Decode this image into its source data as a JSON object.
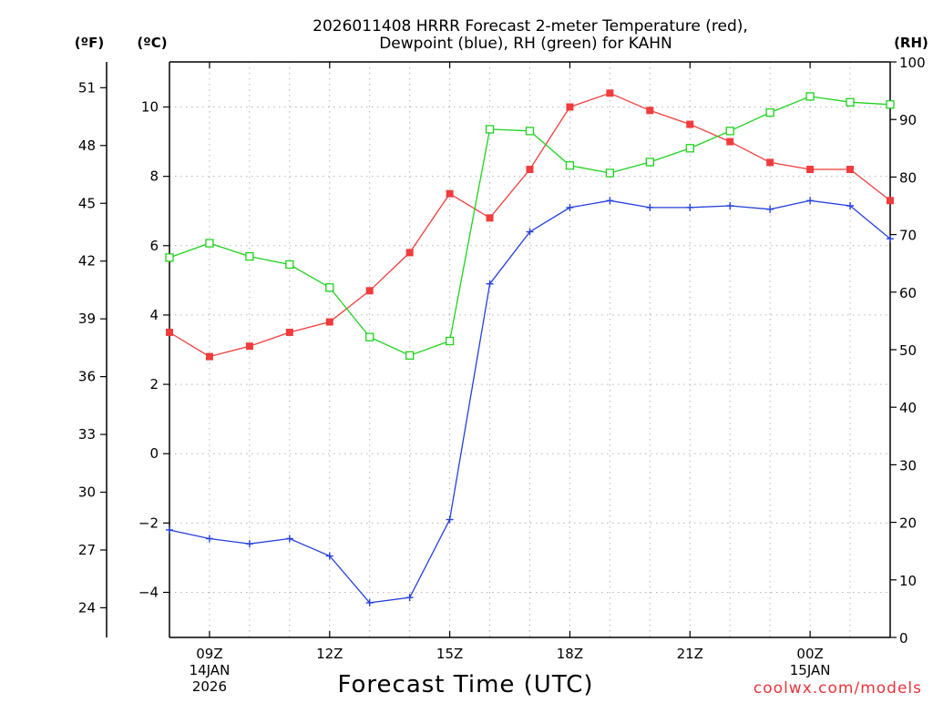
{
  "chart_data": {
    "type": "line",
    "title_line1": "2026011408 HRRR Forecast 2-meter Temperature (red),",
    "title_line2": "Dewpoint (blue), RH (green) for KAHN",
    "xlabel": "Forecast Time (UTC)",
    "credit": "coolwx.com/models",
    "units": {
      "fahrenheit": "(ºF)",
      "celsius": "(ºC)",
      "rh": "(RH)"
    },
    "x_hours": [
      8,
      9,
      10,
      11,
      12,
      13,
      14,
      15,
      16,
      17,
      18,
      19,
      20,
      21,
      22,
      23,
      24,
      25,
      26
    ],
    "xlim": [
      8,
      26
    ],
    "x_ticks": [
      {
        "hour": 9,
        "lines": [
          "09Z",
          "14JAN",
          "2026"
        ]
      },
      {
        "hour": 12,
        "lines": [
          "12Z"
        ]
      },
      {
        "hour": 15,
        "lines": [
          "15Z"
        ]
      },
      {
        "hour": 18,
        "lines": [
          "18Z"
        ]
      },
      {
        "hour": 21,
        "lines": [
          "21Z"
        ]
      },
      {
        "hour": 24,
        "lines": [
          "00Z",
          "15JAN"
        ]
      }
    ],
    "celsius_axis": {
      "range": [
        -5.3,
        11.3
      ],
      "ticks": [
        -4,
        -2,
        0,
        2,
        4,
        6,
        8,
        10
      ]
    },
    "fahrenheit_axis": {
      "ticks": [
        24,
        27,
        30,
        33,
        36,
        39,
        42,
        45,
        48,
        51
      ]
    },
    "rh_axis": {
      "range": [
        0,
        100
      ],
      "ticks": [
        0,
        10,
        20,
        30,
        40,
        50,
        60,
        70,
        80,
        90,
        100
      ]
    },
    "grid": true,
    "series": [
      {
        "name": "Temperature",
        "axis": "celsius",
        "color": "#f03c3c",
        "marker": "filled-square",
        "values": [
          3.5,
          2.8,
          3.1,
          3.5,
          3.8,
          4.7,
          5.8,
          7.5,
          6.8,
          8.2,
          10.0,
          10.4,
          9.9,
          9.5,
          9.0,
          8.4,
          8.2,
          8.2,
          7.3
        ]
      },
      {
        "name": "Dewpoint",
        "axis": "celsius",
        "color": "#2440dc",
        "marker": "plus",
        "values": [
          -2.2,
          -2.45,
          -2.6,
          -2.45,
          -2.95,
          -4.3,
          -4.15,
          -1.9,
          4.9,
          6.4,
          7.1,
          7.3,
          7.1,
          7.1,
          7.15,
          7.05,
          7.3,
          7.15,
          6.2
        ]
      },
      {
        "name": "RH",
        "axis": "rh",
        "color": "#1ed21e",
        "marker": "open-square",
        "values": [
          66,
          68.5,
          66.2,
          64.8,
          60.8,
          52.2,
          49,
          51.5,
          88.3,
          88,
          82,
          80.7,
          82.6,
          85,
          88,
          91.2,
          94,
          93,
          92.6
        ]
      }
    ]
  }
}
